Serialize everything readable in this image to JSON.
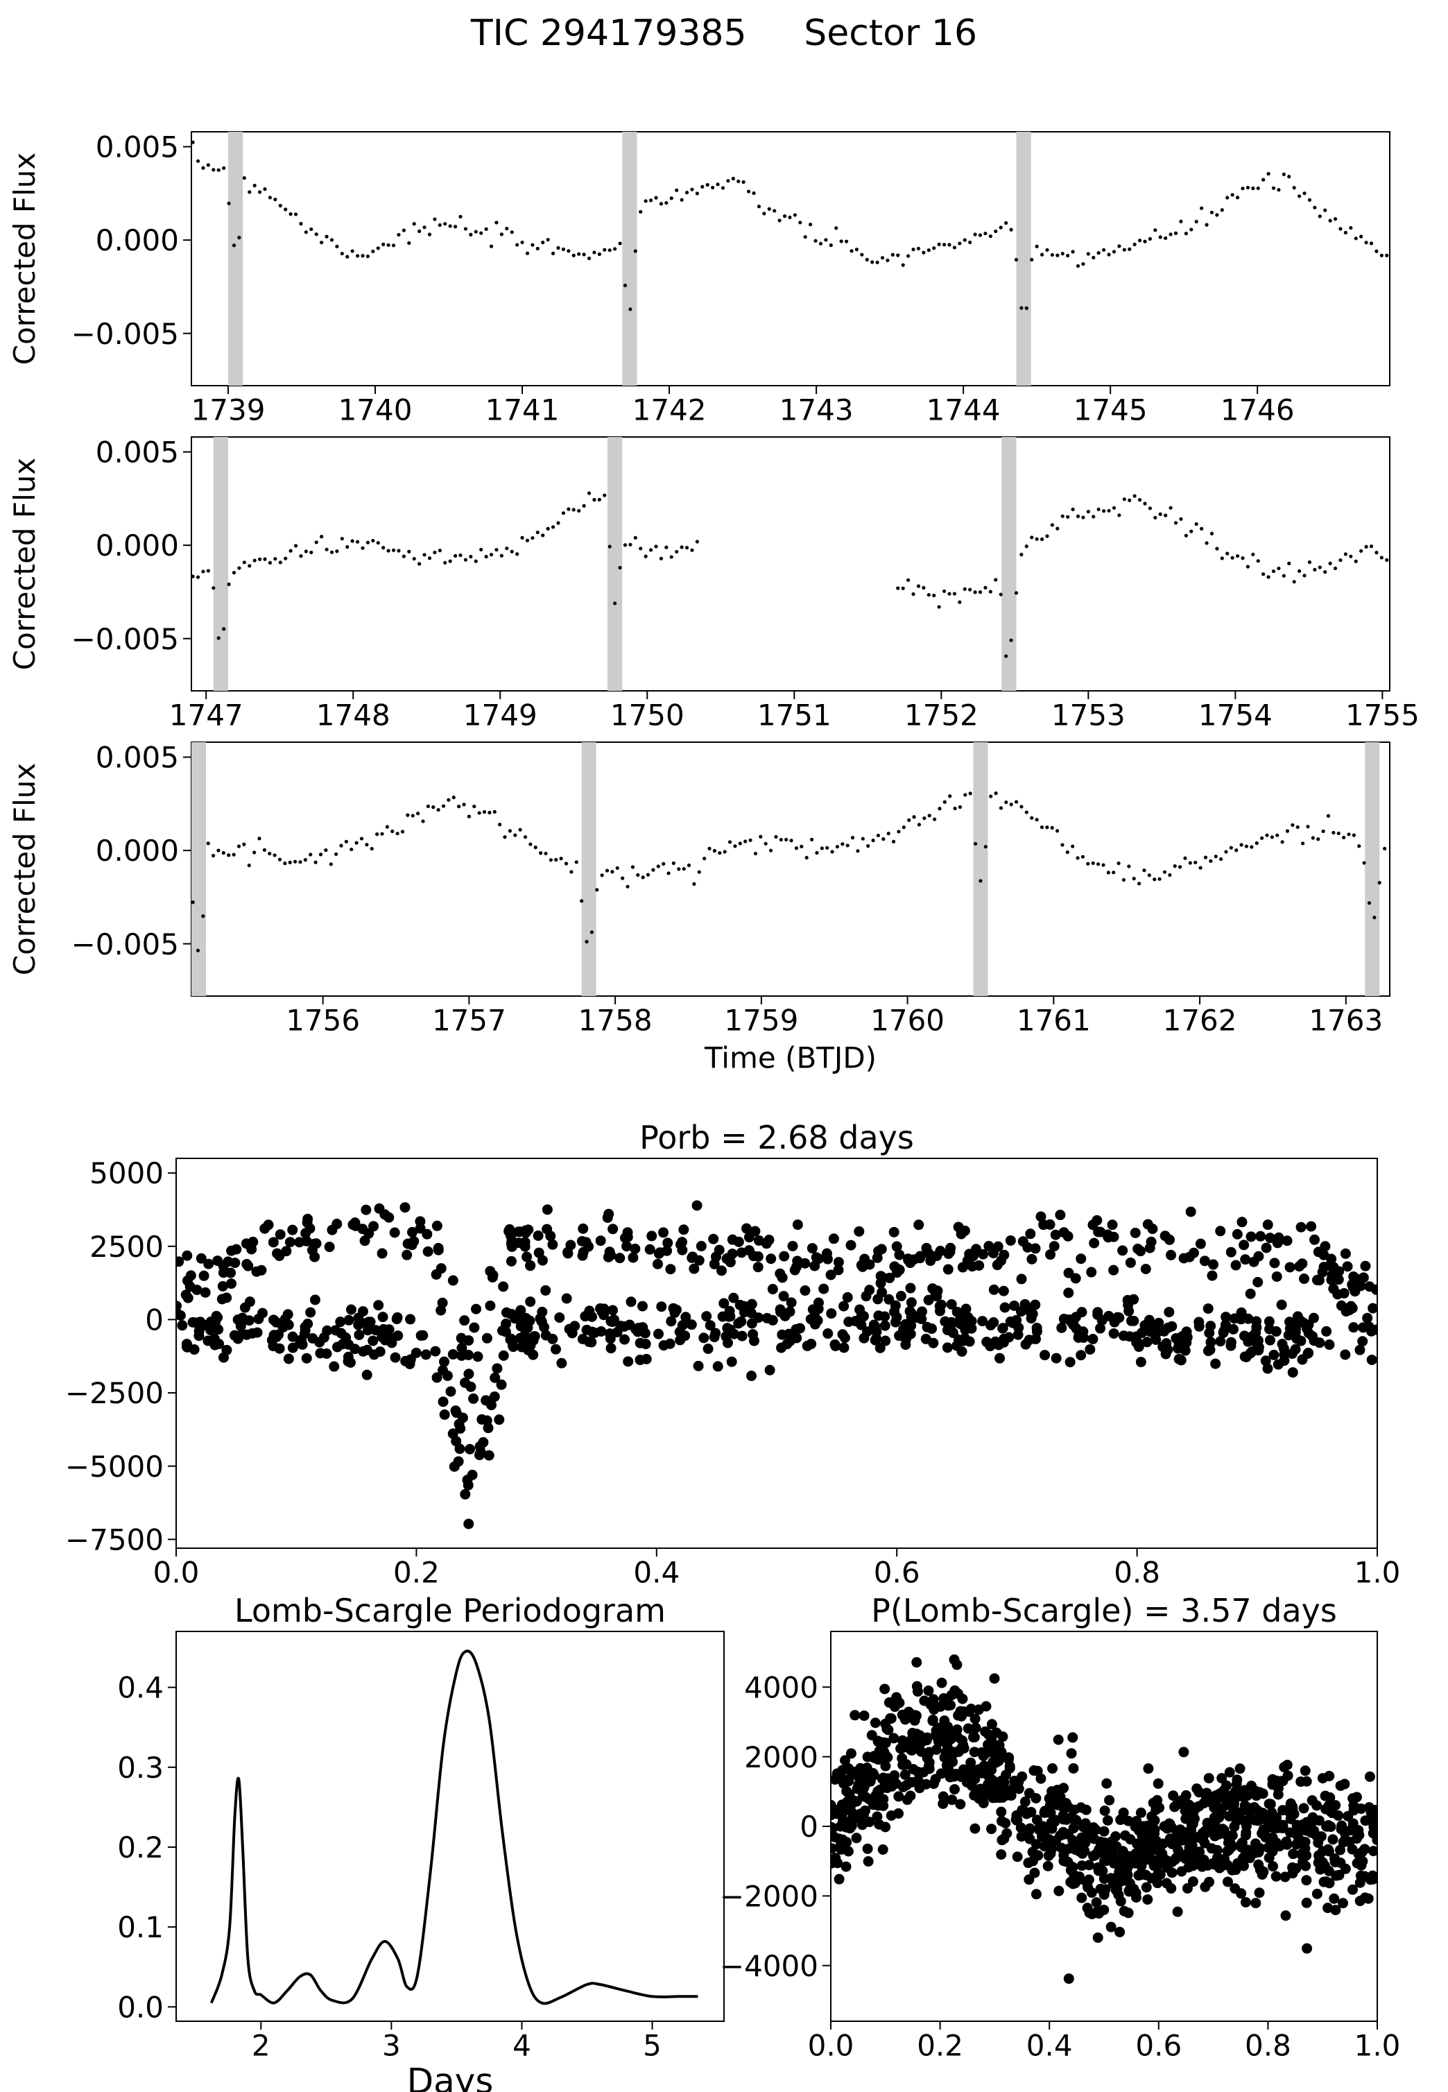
{
  "figure": {
    "title": "TIC 294179385     Sector 16",
    "colors": {
      "points": "#000000",
      "eclipse_band": "#cccccc",
      "axes": "#000000"
    }
  },
  "chart_data": [
    {
      "type": "scatter",
      "panel": "lc-1",
      "ylabel": "Corrected Flux",
      "xlim": [
        1738.75,
        1746.9
      ],
      "ylim": [
        -0.0078,
        0.0058
      ],
      "xticks": [
        1739,
        1740,
        1741,
        1742,
        1743,
        1744,
        1745,
        1746
      ],
      "xtick_labels": [
        "1739",
        "1740",
        "1741",
        "1742",
        "1743",
        "1744",
        "1745",
        "1746"
      ],
      "yticks": [
        0.005,
        0.0,
        -0.005
      ],
      "ytick_labels": [
        "0.005",
        "0.000",
        "−0.005"
      ],
      "eclipses": [
        1739.05,
        1741.73,
        1744.41
      ],
      "trend": [
        [
          1738.75,
          0.0042
        ],
        [
          1739.0,
          0.0038
        ],
        [
          1739.3,
          0.0024
        ],
        [
          1739.6,
          0.0002
        ],
        [
          1739.9,
          -0.0008
        ],
        [
          1740.2,
          0.0003
        ],
        [
          1740.5,
          0.0008
        ],
        [
          1740.8,
          0.0002
        ],
        [
          1741.1,
          -0.0004
        ],
        [
          1741.4,
          -0.0007
        ],
        [
          1741.68,
          -0.0002
        ],
        [
          1741.8,
          0.0018
        ],
        [
          1742.1,
          0.0026
        ],
        [
          1742.4,
          0.003
        ],
        [
          1742.7,
          0.0016
        ],
        [
          1743.0,
          0.0002
        ],
        [
          1743.3,
          -0.0008
        ],
        [
          1743.6,
          -0.001
        ],
        [
          1743.9,
          -0.0002
        ],
        [
          1744.2,
          0.0004
        ],
        [
          1744.38,
          0.0001
        ],
        [
          1744.5,
          -0.0006
        ],
        [
          1744.8,
          -0.0009
        ],
        [
          1745.1,
          -0.0004
        ],
        [
          1745.4,
          0.0002
        ],
        [
          1745.7,
          0.0014
        ],
        [
          1745.95,
          0.003
        ],
        [
          1746.2,
          0.003
        ],
        [
          1746.5,
          0.001
        ],
        [
          1746.9,
          -0.001
        ]
      ],
      "noise": 0.0006
    },
    {
      "type": "scatter",
      "panel": "lc-2",
      "ylabel": "Corrected Flux",
      "xlim": [
        1746.9,
        1755.05
      ],
      "ylim": [
        -0.0078,
        0.0058
      ],
      "xticks": [
        1747,
        1748,
        1749,
        1750,
        1751,
        1752,
        1753,
        1754,
        1755
      ],
      "xtick_labels": [
        "1747",
        "1748",
        "1749",
        "1750",
        "1751",
        "1752",
        "1753",
        "1754",
        "1755"
      ],
      "yticks": [
        0.005,
        0.0,
        -0.005
      ],
      "ytick_labels": [
        "0.005",
        "0.000",
        "−0.005"
      ],
      "eclipses": [
        1747.1,
        1749.78,
        1752.46
      ],
      "data_gap": [
        1750.35,
        1751.7
      ],
      "trend": [
        [
          1746.9,
          -0.0016
        ],
        [
          1747.05,
          -0.0014
        ],
        [
          1747.2,
          -0.001
        ],
        [
          1747.5,
          -0.0006
        ],
        [
          1747.8,
          0.0
        ],
        [
          1748.1,
          0.0001
        ],
        [
          1748.4,
          -0.0005
        ],
        [
          1748.7,
          -0.0008
        ],
        [
          1749.0,
          -0.0004
        ],
        [
          1749.3,
          0.001
        ],
        [
          1749.6,
          0.0024
        ],
        [
          1749.75,
          0.0024
        ],
        [
          1749.85,
          0.0
        ],
        [
          1750.1,
          -0.0003
        ],
        [
          1750.35,
          -0.0002
        ],
        [
          1751.7,
          -0.002
        ],
        [
          1752.0,
          -0.0028
        ],
        [
          1752.3,
          -0.0024
        ],
        [
          1752.43,
          -0.002
        ],
        [
          1752.6,
          0.0002
        ],
        [
          1752.9,
          0.0015
        ],
        [
          1753.3,
          0.0025
        ],
        [
          1753.6,
          0.0015
        ],
        [
          1753.9,
          -0.0002
        ],
        [
          1754.2,
          -0.0015
        ],
        [
          1754.5,
          -0.0014
        ],
        [
          1754.8,
          -0.0004
        ],
        [
          1755.05,
          0.0002
        ]
      ],
      "noise": 0.0006
    },
    {
      "type": "scatter",
      "panel": "lc-3",
      "xlabel": "Time (BTJD)",
      "ylabel": "Corrected Flux",
      "xlim": [
        1755.1,
        1763.3
      ],
      "ylim": [
        -0.0078,
        0.0058
      ],
      "xticks": [
        1756,
        1757,
        1758,
        1759,
        1760,
        1761,
        1762,
        1763
      ],
      "xtick_labels": [
        "1756",
        "1757",
        "1758",
        "1759",
        "1760",
        "1761",
        "1762",
        "1763"
      ],
      "yticks": [
        0.005,
        0.0,
        -0.005
      ],
      "ytick_labels": [
        "0.005",
        "0.000",
        "−0.005"
      ],
      "eclipses": [
        1755.15,
        1757.82,
        1760.5,
        1763.18
      ],
      "trend": [
        [
          1755.1,
          -0.0005
        ],
        [
          1755.25,
          -0.0001
        ],
        [
          1755.6,
          -0.0002
        ],
        [
          1755.9,
          -0.0004
        ],
        [
          1756.2,
          0.0002
        ],
        [
          1756.5,
          0.0012
        ],
        [
          1756.8,
          0.0025
        ],
        [
          1757.1,
          0.0022
        ],
        [
          1757.4,
          0.0003
        ],
        [
          1757.75,
          -0.001
        ],
        [
          1757.9,
          -0.0012
        ],
        [
          1758.2,
          -0.0014
        ],
        [
          1758.5,
          -0.0008
        ],
        [
          1758.8,
          0.0004
        ],
        [
          1759.1,
          0.0004
        ],
        [
          1759.4,
          0.0
        ],
        [
          1759.7,
          0.0005
        ],
        [
          1760.0,
          0.0015
        ],
        [
          1760.3,
          0.0025
        ],
        [
          1760.45,
          0.0028
        ],
        [
          1760.6,
          0.003
        ],
        [
          1760.9,
          0.0015
        ],
        [
          1761.2,
          -0.0004
        ],
        [
          1761.5,
          -0.0014
        ],
        [
          1761.8,
          -0.0012
        ],
        [
          1762.1,
          -0.0004
        ],
        [
          1762.4,
          0.0005
        ],
        [
          1762.7,
          0.001
        ],
        [
          1763.0,
          0.001
        ],
        [
          1763.3,
          0.0
        ]
      ],
      "noise": 0.0006
    },
    {
      "type": "scatter",
      "panel": "phase-orb",
      "title": "Porb = 2.68 days",
      "xlim": [
        0.0,
        1.0
      ],
      "ylim": [
        -7800,
        5500
      ],
      "xticks": [
        0.0,
        0.2,
        0.4,
        0.6,
        0.8,
        1.0
      ],
      "xtick_labels": [
        "0.0",
        "0.2",
        "0.4",
        "0.6",
        "0.8",
        "1.0"
      ],
      "yticks": [
        5000,
        2500,
        0,
        -2500,
        -5000,
        -7500
      ],
      "ytick_labels": [
        "5000",
        "2500",
        "0",
        "−2500",
        "−5000",
        "−7500"
      ],
      "dip": {
        "center": 0.245,
        "half_width": 0.03,
        "depth": -5000
      },
      "upper_band": [
        [
          0.0,
          1500
        ],
        [
          0.1,
          2800
        ],
        [
          0.2,
          3000
        ],
        [
          0.3,
          2600
        ],
        [
          0.4,
          2400
        ],
        [
          0.5,
          2200
        ],
        [
          0.6,
          2000
        ],
        [
          0.7,
          2400
        ],
        [
          0.8,
          2600
        ],
        [
          0.9,
          2400
        ],
        [
          1.0,
          1500
        ]
      ],
      "lower_band": [
        [
          0.0,
          0
        ],
        [
          0.1,
          -500
        ],
        [
          0.2,
          -800
        ],
        [
          0.3,
          -400
        ],
        [
          0.4,
          -500
        ],
        [
          0.5,
          -300
        ],
        [
          0.6,
          0
        ],
        [
          0.7,
          -300
        ],
        [
          0.8,
          -400
        ],
        [
          0.9,
          -600
        ],
        [
          1.0,
          -500
        ]
      ],
      "noise": 900
    },
    {
      "type": "line",
      "panel": "periodogram",
      "title": "Lomb-Scargle Periodogram",
      "xlabel": "Days",
      "xlim": [
        1.35,
        5.55
      ],
      "ylim": [
        -0.018,
        0.47
      ],
      "xticks": [
        2,
        3,
        4,
        5
      ],
      "xtick_labels": [
        "2",
        "3",
        "4",
        "5"
      ],
      "yticks": [
        0.0,
        0.1,
        0.2,
        0.3,
        0.4
      ],
      "ytick_labels": [
        "0.0",
        "0.1",
        "0.2",
        "0.3",
        "0.4"
      ],
      "series": [
        {
          "x": [
            1.62,
            1.7,
            1.76,
            1.8,
            1.83,
            1.86,
            1.9,
            1.95,
            2.0,
            2.1,
            2.2,
            2.3,
            2.38,
            2.46,
            2.55,
            2.7,
            2.85,
            2.95,
            3.05,
            3.12,
            3.2,
            3.3,
            3.4,
            3.5,
            3.57,
            3.65,
            3.75,
            3.85,
            3.95,
            4.05,
            4.15,
            4.3,
            4.5,
            4.6,
            4.8,
            5.0,
            5.2,
            5.35
          ],
          "y": [
            0.005,
            0.04,
            0.1,
            0.24,
            0.285,
            0.2,
            0.06,
            0.02,
            0.015,
            0.005,
            0.02,
            0.038,
            0.04,
            0.02,
            0.008,
            0.01,
            0.06,
            0.082,
            0.06,
            0.025,
            0.04,
            0.17,
            0.33,
            0.42,
            0.445,
            0.43,
            0.36,
            0.22,
            0.1,
            0.03,
            0.005,
            0.012,
            0.028,
            0.028,
            0.02,
            0.013,
            0.013,
            0.013
          ]
        }
      ]
    },
    {
      "type": "scatter",
      "panel": "phase-ls",
      "title": "P(Lomb-Scargle) = 3.57 days",
      "xlim": [
        0.0,
        1.0
      ],
      "ylim": [
        -5600,
        5600
      ],
      "xticks": [
        0.0,
        0.2,
        0.4,
        0.6,
        0.8,
        1.0
      ],
      "xtick_labels": [
        "0.0",
        "0.2",
        "0.4",
        "0.6",
        "0.8",
        "1.0"
      ],
      "yticks": [
        4000,
        2000,
        0,
        -2000,
        -4000
      ],
      "ytick_labels": [
        "4000",
        "2000",
        "0",
        "−2000",
        "−4000"
      ],
      "trend": [
        [
          0.0,
          0
        ],
        [
          0.05,
          900
        ],
        [
          0.1,
          1900
        ],
        [
          0.15,
          2500
        ],
        [
          0.2,
          2600
        ],
        [
          0.25,
          2200
        ],
        [
          0.3,
          1600
        ],
        [
          0.35,
          600
        ],
        [
          0.4,
          -100
        ],
        [
          0.45,
          -500
        ],
        [
          0.5,
          -1200
        ],
        [
          0.55,
          -1100
        ],
        [
          0.6,
          -500
        ],
        [
          0.65,
          -200
        ],
        [
          0.7,
          -200
        ],
        [
          0.75,
          -300
        ],
        [
          0.8,
          -200
        ],
        [
          0.85,
          -400
        ],
        [
          0.9,
          -500
        ],
        [
          0.95,
          -400
        ],
        [
          1.0,
          -200
        ]
      ],
      "noise": 900
    }
  ]
}
